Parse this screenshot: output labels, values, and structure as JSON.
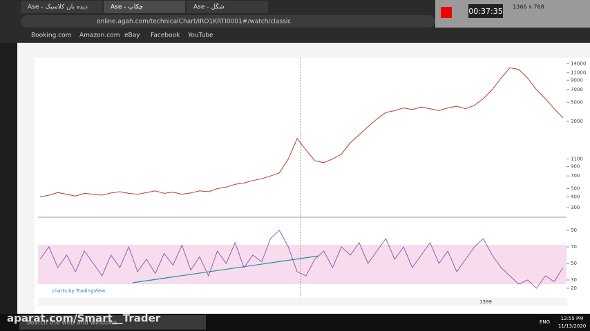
{
  "browser": {
    "tabs": [
      "Ase - دیده بان کلاسیک",
      "Ase - چکاپ",
      "Ase - شگل"
    ],
    "url": "online.agah.com/technicalChart/IRO1KRTI0001#/watch/classic",
    "bookmarks": [
      "Booking.com",
      "Amazon.com",
      "eBay",
      "Facebook",
      "YouTube"
    ]
  },
  "recorder": {
    "time": "00:37:35",
    "resolution": "1366 x 768"
  },
  "chart_data": [
    {
      "type": "line",
      "color": "#c0392b",
      "log_scale": true,
      "values": [
        400,
        420,
        450,
        430,
        410,
        440,
        430,
        420,
        445,
        460,
        440,
        430,
        450,
        470,
        440,
        455,
        430,
        445,
        470,
        460,
        500,
        520,
        560,
        580,
        620,
        650,
        700,
        760,
        1100,
        1900,
        1400,
        1050,
        1000,
        1100,
        1250,
        1700,
        2100,
        2600,
        3200,
        3800,
        4000,
        4300,
        4100,
        4400,
        4200,
        4000,
        4300,
        4500,
        4200,
        4600,
        5500,
        7000,
        9500,
        12500,
        12000,
        9500,
        7000,
        5500,
        4200,
        3300
      ],
      "ylim": [
        280,
        16000
      ],
      "yticks": [
        300,
        400,
        500,
        700,
        900,
        1100,
        3000,
        5000,
        7000,
        9000,
        11000,
        14000
      ]
    },
    {
      "type": "line",
      "color": "#9b59b6",
      "values": [
        55,
        70,
        45,
        60,
        40,
        65,
        50,
        35,
        60,
        45,
        70,
        40,
        55,
        38,
        62,
        48,
        72,
        42,
        58,
        35,
        65,
        50,
        75,
        45,
        60,
        52,
        80,
        90,
        70,
        40,
        35,
        55,
        65,
        45,
        70,
        60,
        75,
        50,
        65,
        80,
        55,
        70,
        45,
        60,
        75,
        50,
        65,
        40,
        55,
        70,
        80,
        60,
        45,
        35,
        25,
        30,
        20,
        35,
        28,
        45
      ],
      "ylim": [
        10,
        100
      ],
      "yticks": [
        20,
        30,
        50,
        70,
        90
      ]
    }
  ],
  "footer": {
    "watermark": "charts by TradingView",
    "year": "1399"
  },
  "taskbar": {
    "search": "Search the web and windows",
    "lang": "ENG",
    "time": "12:55 PM",
    "date": "11/13/2020",
    "credit": "aparat.com/Smart__Trader"
  }
}
